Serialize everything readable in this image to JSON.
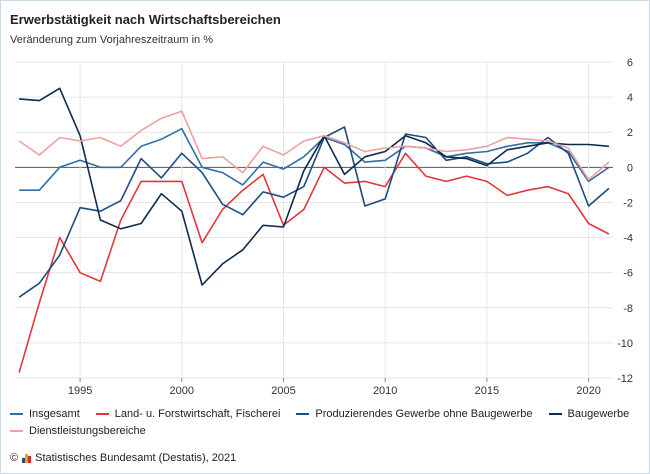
{
  "title": "Erwerbstätigkeit nach Wirtschaftsbereichen",
  "subtitle": "Veränderung zum Vorjahreszeitraum in %",
  "source": {
    "copyright": "©",
    "text": "Statistisches Bundesamt (Destatis), 2021",
    "logo_colors": [
      "#1b4f8a",
      "#e8a02a",
      "#d42a2a"
    ]
  },
  "chart_data": {
    "type": "line",
    "title": "Erwerbstätigkeit nach Wirtschaftsbereichen",
    "subtitle": "Veränderung zum Vorjahreszeitraum in %",
    "xlim": [
      1992,
      2021
    ],
    "ylim": [
      -12,
      6
    ],
    "xticks": [
      1995,
      2000,
      2005,
      2010,
      2015,
      2020
    ],
    "yticks": [
      6,
      4,
      2,
      0,
      -2,
      -4,
      -6,
      -8,
      -10,
      -12
    ],
    "grid": true,
    "legend_position": "bottom",
    "x": [
      1992,
      1993,
      1994,
      1995,
      1996,
      1997,
      1998,
      1999,
      2000,
      2001,
      2002,
      2003,
      2004,
      2005,
      2006,
      2007,
      2008,
      2009,
      2010,
      2011,
      2012,
      2013,
      2014,
      2015,
      2016,
      2017,
      2018,
      2019,
      2020,
      2021
    ],
    "series": [
      {
        "name": "Insgesamt",
        "color": "#2f6fa6",
        "values": [
          -1.3,
          -1.3,
          0.0,
          0.4,
          0.0,
          0.0,
          1.2,
          1.6,
          2.2,
          0.0,
          -0.3,
          -1.0,
          0.3,
          -0.1,
          0.6,
          1.7,
          1.3,
          0.3,
          0.4,
          1.2,
          1.1,
          0.6,
          0.8,
          0.9,
          1.2,
          1.4,
          1.4,
          0.9,
          -0.8,
          0.0
        ]
      },
      {
        "name": "Land- u. Forstwirtschaft, Fischerei",
        "color": "#e0383c",
        "values": [
          -11.7,
          -7.7,
          -4.0,
          -6.0,
          -6.5,
          -3.0,
          -0.8,
          -0.8,
          -0.8,
          -4.3,
          -2.4,
          -1.3,
          -0.4,
          -3.3,
          -2.4,
          0.0,
          -0.9,
          -0.8,
          -1.1,
          0.8,
          -0.5,
          -0.8,
          -0.5,
          -0.8,
          -1.6,
          -1.3,
          -1.1,
          -1.5,
          -3.2,
          -3.8
        ]
      },
      {
        "name": "Produzierendes Gewerbe ohne Baugewerbe",
        "color": "#1c4d7e",
        "values": [
          -7.4,
          -6.6,
          -5.0,
          -2.3,
          -2.5,
          -1.9,
          0.5,
          -0.6,
          0.8,
          -0.3,
          -2.1,
          -2.7,
          -1.4,
          -1.7,
          -1.1,
          1.7,
          2.3,
          -2.2,
          -1.8,
          1.9,
          1.7,
          0.4,
          0.6,
          0.2,
          0.3,
          0.8,
          1.7,
          0.8,
          -2.2,
          -1.2
        ]
      },
      {
        "name": "Baugewerbe",
        "color": "#0d2b4e",
        "values": [
          3.9,
          3.8,
          4.5,
          1.8,
          -3.0,
          -3.5,
          -3.2,
          -1.5,
          -2.5,
          -6.7,
          -5.5,
          -4.7,
          -3.3,
          -3.4,
          -0.2,
          1.8,
          -0.4,
          0.6,
          0.9,
          1.8,
          1.4,
          0.6,
          0.5,
          0.1,
          1.0,
          1.2,
          1.4,
          1.3,
          1.3,
          1.2
        ]
      },
      {
        "name": "Dienstleistungsbereiche",
        "color": "#f0a0a0",
        "values": [
          1.5,
          0.7,
          1.7,
          1.5,
          1.7,
          1.2,
          2.1,
          2.8,
          3.2,
          0.5,
          0.6,
          -0.3,
          1.2,
          0.7,
          1.5,
          1.8,
          1.4,
          0.9,
          1.1,
          1.2,
          1.1,
          0.9,
          1.0,
          1.2,
          1.7,
          1.6,
          1.5,
          1.1,
          -0.7,
          0.3
        ]
      }
    ]
  },
  "legend": {
    "row1": [
      {
        "label": "Insgesamt",
        "color": "#2f6fa6"
      },
      {
        "label": "Land- u. Forstwirtschaft, Fischerei",
        "color": "#e0383c"
      },
      {
        "label": "Produzierendes Gewerbe ohne Baugewerbe",
        "color": "#1c4d7e"
      },
      {
        "label": "Baugewerbe",
        "color": "#0d2b4e"
      }
    ],
    "row2": [
      {
        "label": "Dienstleistungsbereiche",
        "color": "#f0a0a0"
      }
    ]
  }
}
